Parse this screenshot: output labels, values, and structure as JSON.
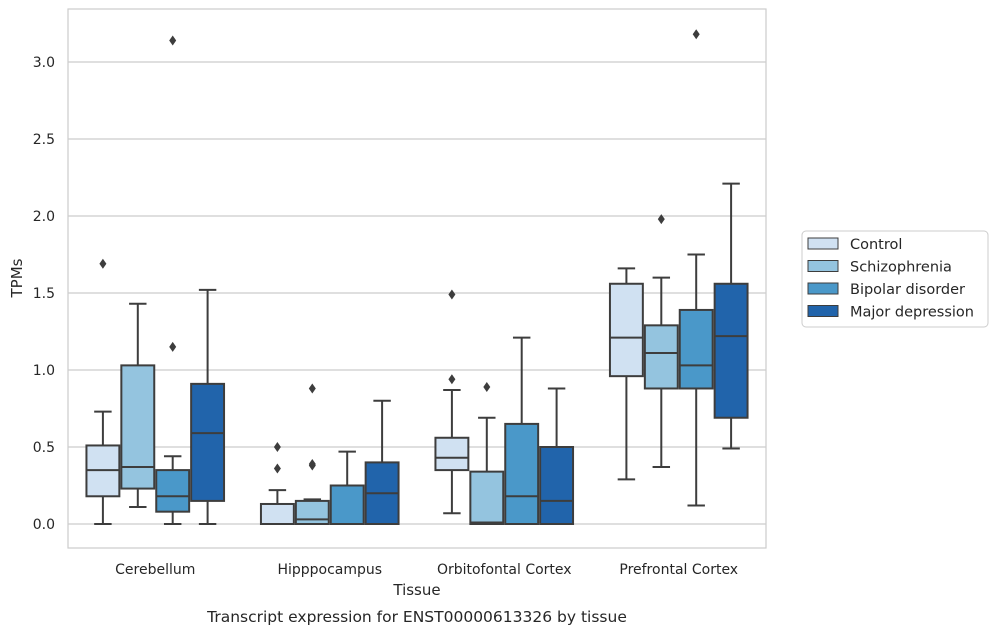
{
  "chart_data": {
    "type": "boxplot",
    "title": "",
    "caption": "Transcript expression for ENST00000613326 by tissue",
    "xlabel": "Tissue",
    "ylabel": "TPMs",
    "ylim": [
      -0.15,
      3.35
    ],
    "yticks": [
      "0.0",
      "0.5",
      "1.0",
      "1.5",
      "2.0",
      "2.5",
      "3.0"
    ],
    "grid": "horizontal",
    "legend_position": "right-outside",
    "categories": [
      "Cerebellum",
      "Hipppocampus",
      "Orbitofontal Cortex",
      "Prefrontal Cortex"
    ],
    "series": [
      {
        "name": "Control",
        "color": "#d0e1f2",
        "boxes": [
          {
            "whislo": 0.0,
            "q1": 0.18,
            "med": 0.35,
            "q3": 0.51,
            "whishi": 0.73,
            "fliers": [
              1.69
            ]
          },
          {
            "whislo": 0.0,
            "q1": 0.0,
            "med": 0.0,
            "q3": 0.13,
            "whishi": 0.22,
            "fliers": [
              0.36,
              0.5
            ]
          },
          {
            "whislo": 0.07,
            "q1": 0.35,
            "med": 0.43,
            "q3": 0.56,
            "whishi": 0.87,
            "fliers": [
              0.94,
              1.49
            ]
          },
          {
            "whislo": 0.29,
            "q1": 0.96,
            "med": 1.21,
            "q3": 1.56,
            "whishi": 1.66,
            "fliers": []
          }
        ]
      },
      {
        "name": "Schizophrenia",
        "color": "#94c4df",
        "boxes": [
          {
            "whislo": 0.11,
            "q1": 0.23,
            "med": 0.37,
            "q3": 1.03,
            "whishi": 1.43,
            "fliers": []
          },
          {
            "whislo": 0.0,
            "q1": 0.0,
            "med": 0.03,
            "q3": 0.15,
            "whishi": 0.16,
            "fliers": [
              0.38,
              0.39,
              0.88
            ]
          },
          {
            "whislo": 0.0,
            "q1": 0.0,
            "med": 0.01,
            "q3": 0.34,
            "whishi": 0.69,
            "fliers": [
              0.89
            ]
          },
          {
            "whislo": 0.37,
            "q1": 0.88,
            "med": 1.11,
            "q3": 1.29,
            "whishi": 1.6,
            "fliers": [
              1.98
            ]
          }
        ]
      },
      {
        "name": "Bipolar disorder",
        "color": "#4a98c9",
        "boxes": [
          {
            "whislo": 0.0,
            "q1": 0.08,
            "med": 0.18,
            "q3": 0.35,
            "whishi": 0.44,
            "fliers": [
              1.15,
              3.14
            ]
          },
          {
            "whislo": 0.0,
            "q1": 0.0,
            "med": 0.0,
            "q3": 0.25,
            "whishi": 0.47,
            "fliers": []
          },
          {
            "whislo": 0.0,
            "q1": 0.0,
            "med": 0.18,
            "q3": 0.65,
            "whishi": 1.21,
            "fliers": []
          },
          {
            "whislo": 0.12,
            "q1": 0.88,
            "med": 1.03,
            "q3": 1.39,
            "whishi": 1.75,
            "fliers": [
              3.18
            ]
          }
        ]
      },
      {
        "name": "Major depression",
        "color": "#2164ab",
        "boxes": [
          {
            "whislo": 0.0,
            "q1": 0.15,
            "med": 0.59,
            "q3": 0.91,
            "whishi": 1.52,
            "fliers": []
          },
          {
            "whislo": 0.0,
            "q1": 0.0,
            "med": 0.2,
            "q3": 0.4,
            "whishi": 0.8,
            "fliers": []
          },
          {
            "whislo": 0.0,
            "q1": 0.0,
            "med": 0.15,
            "q3": 0.5,
            "whishi": 0.88,
            "fliers": []
          },
          {
            "whislo": 0.49,
            "q1": 0.69,
            "med": 1.22,
            "q3": 1.56,
            "whishi": 2.21,
            "fliers": []
          }
        ]
      }
    ]
  }
}
